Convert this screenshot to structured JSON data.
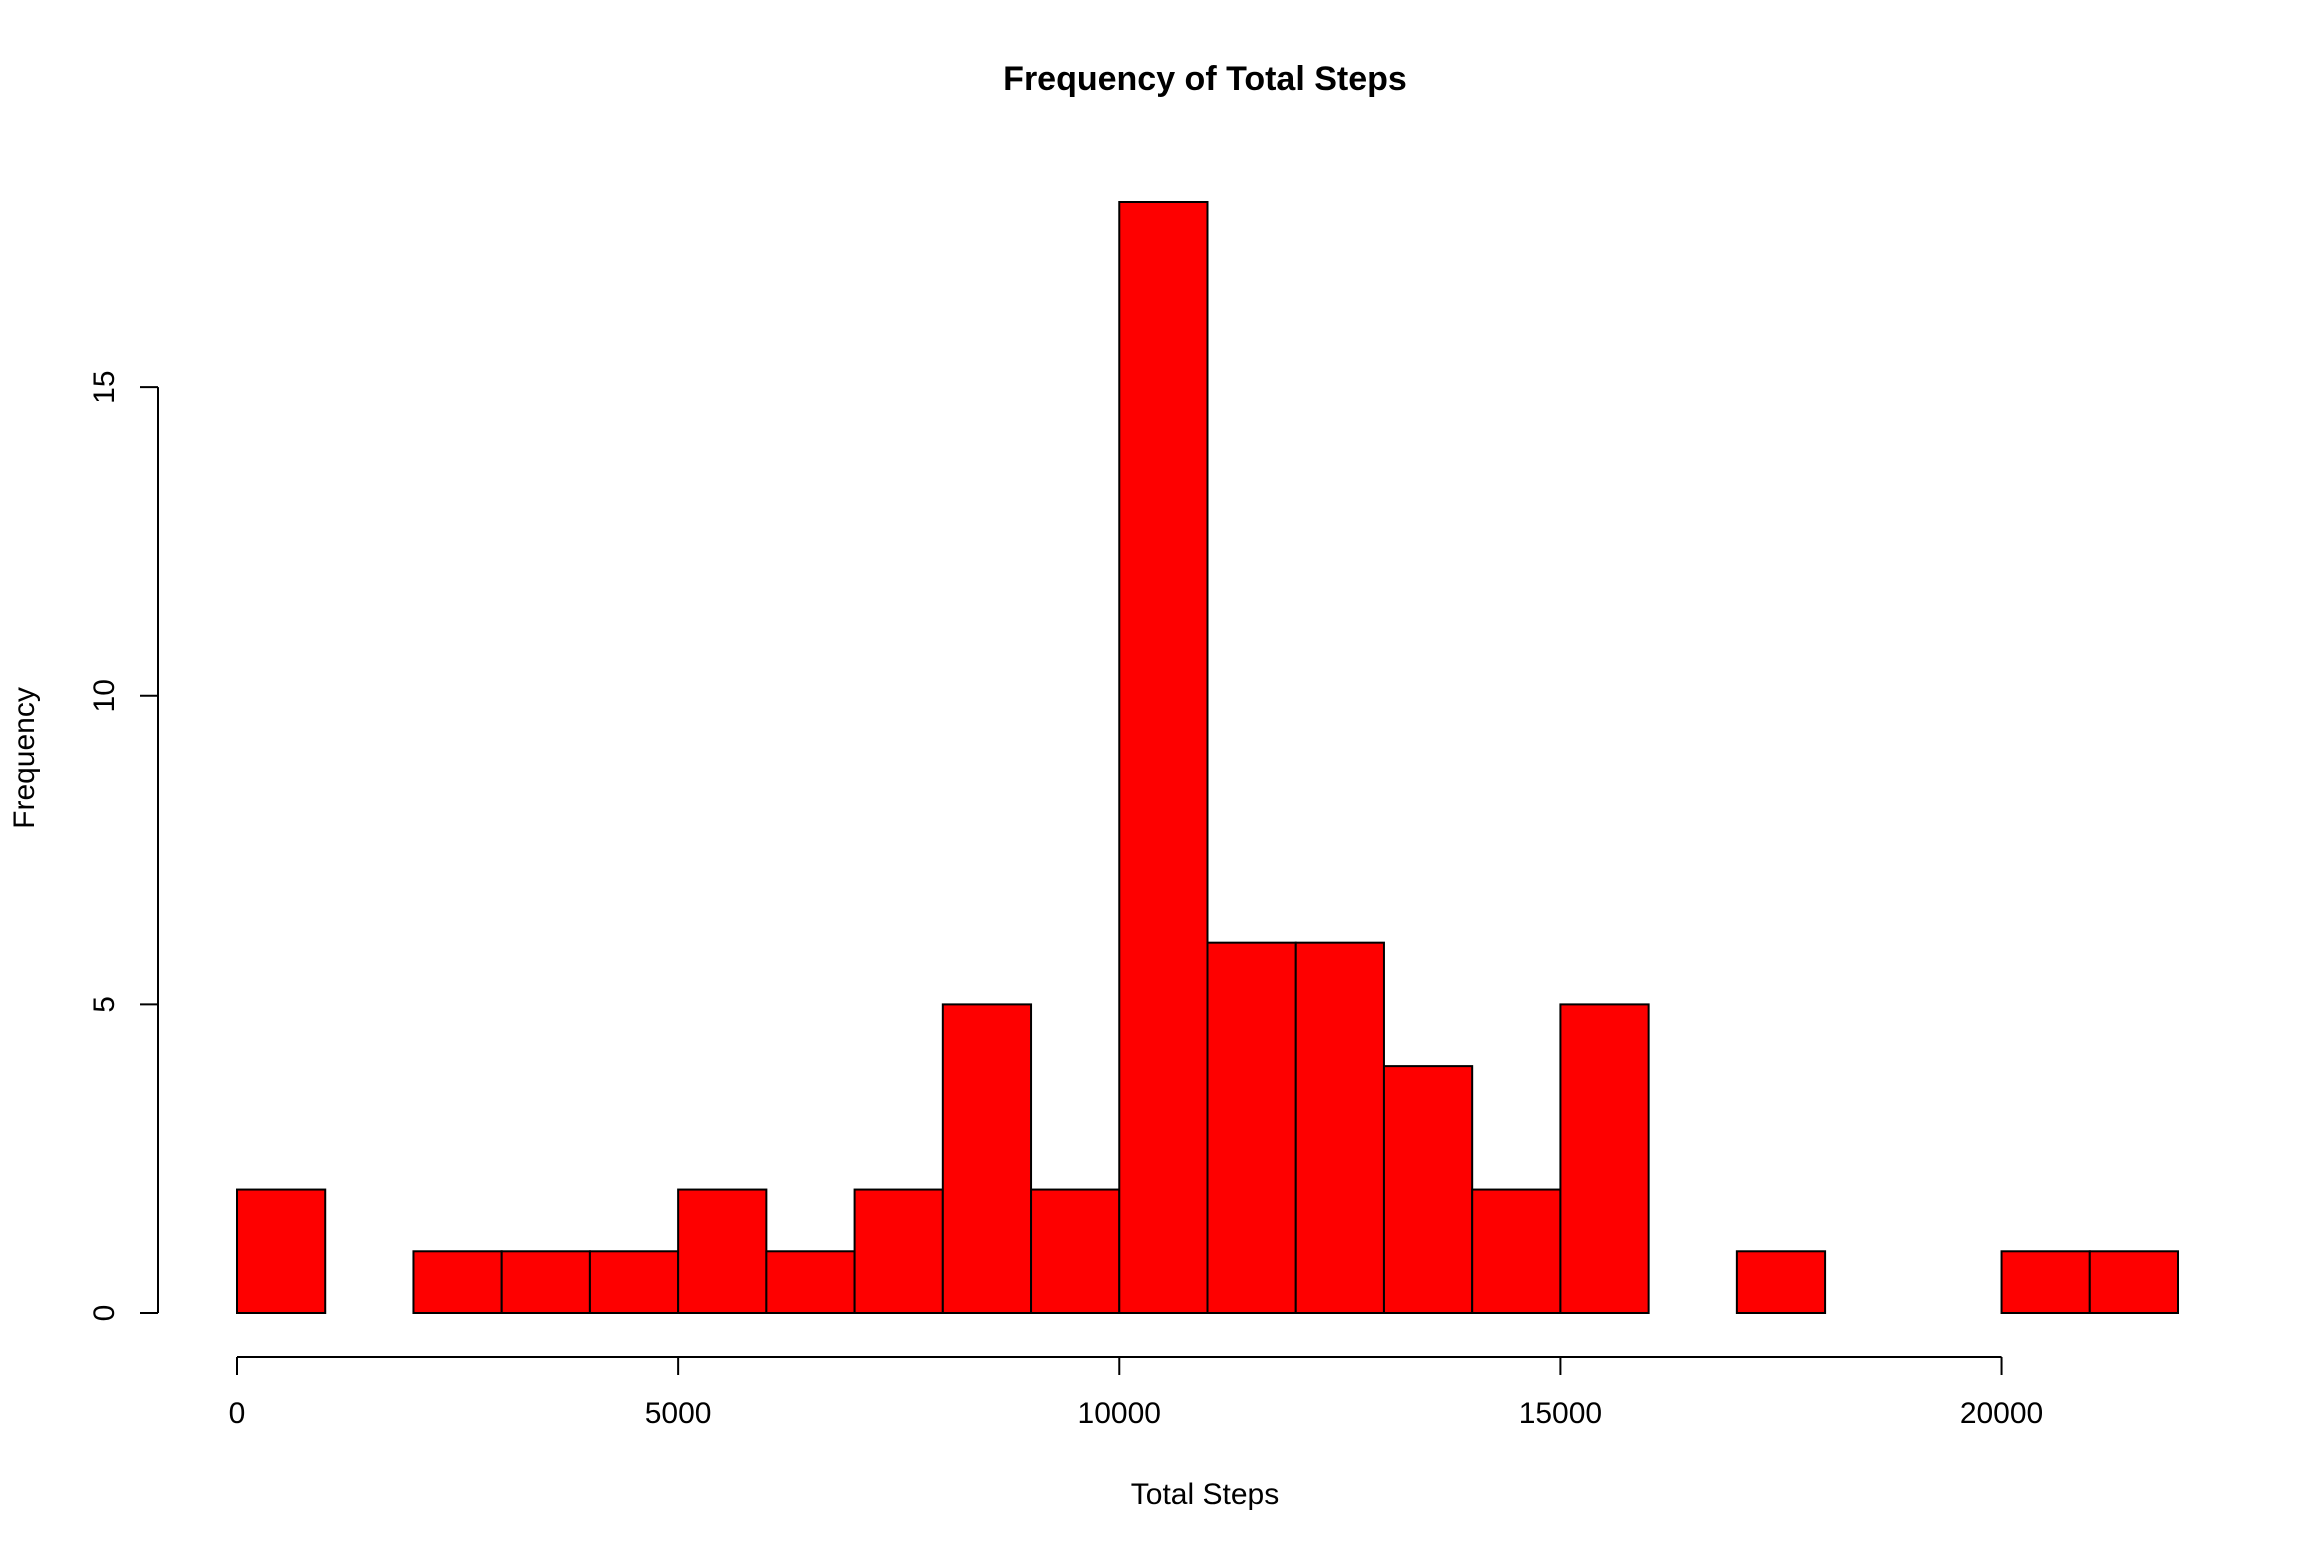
{
  "chart_data": {
    "type": "bar",
    "title": "Frequency of Total Steps",
    "xlabel": "Total Steps",
    "ylabel": "Frequency",
    "bins": [
      {
        "start": 0,
        "end": 1000,
        "count": 2
      },
      {
        "start": 1000,
        "end": 2000,
        "count": 0
      },
      {
        "start": 2000,
        "end": 3000,
        "count": 1
      },
      {
        "start": 3000,
        "end": 4000,
        "count": 1
      },
      {
        "start": 4000,
        "end": 5000,
        "count": 1
      },
      {
        "start": 5000,
        "end": 6000,
        "count": 2
      },
      {
        "start": 6000,
        "end": 7000,
        "count": 1
      },
      {
        "start": 7000,
        "end": 8000,
        "count": 2
      },
      {
        "start": 8000,
        "end": 9000,
        "count": 5
      },
      {
        "start": 9000,
        "end": 10000,
        "count": 2
      },
      {
        "start": 10000,
        "end": 11000,
        "count": 18
      },
      {
        "start": 11000,
        "end": 12000,
        "count": 6
      },
      {
        "start": 12000,
        "end": 13000,
        "count": 6
      },
      {
        "start": 13000,
        "end": 14000,
        "count": 4
      },
      {
        "start": 14000,
        "end": 15000,
        "count": 2
      },
      {
        "start": 15000,
        "end": 16000,
        "count": 5
      },
      {
        "start": 16000,
        "end": 17000,
        "count": 0
      },
      {
        "start": 17000,
        "end": 18000,
        "count": 1
      },
      {
        "start": 18000,
        "end": 19000,
        "count": 0
      },
      {
        "start": 19000,
        "end": 20000,
        "count": 0
      },
      {
        "start": 20000,
        "end": 21000,
        "count": 1
      },
      {
        "start": 21000,
        "end": 22000,
        "count": 1
      }
    ],
    "xlim": [
      0,
      22000
    ],
    "ylim": [
      0,
      18
    ],
    "x_ticks": [
      0,
      5000,
      10000,
      15000,
      20000
    ],
    "y_ticks": [
      0,
      5,
      10,
      15
    ],
    "bar_color": "#fe0000",
    "border_color": "#000000",
    "grid": false,
    "legend": "none"
  }
}
